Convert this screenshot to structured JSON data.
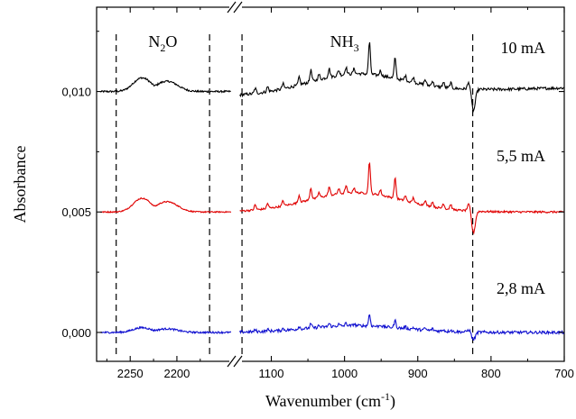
{
  "chart_data": {
    "type": "line",
    "xlabel": "Wavenumber (cm",
    "xlabel_superscript": "-1",
    "xlabel_suffix": ")",
    "ylabel": "Absorbance",
    "ylim": [
      -0.0012,
      0.0135
    ],
    "x_axis_broken": true,
    "x_segments": [
      {
        "range": [
          2285,
          2140
        ],
        "ticks": [
          2250,
          2200
        ],
        "tick_labels": [
          "2250",
          "2200"
        ]
      },
      {
        "range": [
          1145,
          700
        ],
        "ticks": [
          1100,
          1000,
          900,
          800,
          700
        ],
        "tick_labels": [
          "1100",
          "1000",
          "900",
          "800",
          "700"
        ]
      }
    ],
    "y_ticks": [
      0.0,
      0.005,
      0.01
    ],
    "y_tick_labels": [
      "0,000",
      "0,005",
      "0,010"
    ],
    "regions": [
      {
        "label": "N",
        "sub": "2",
        "suffix": "O",
        "x_at": 2215
      },
      {
        "label": "NH",
        "sub": "3",
        "suffix": "",
        "x_at": 1000
      }
    ],
    "dashed_lines_x": [
      2265,
      2165,
      1140,
      825
    ],
    "series": [
      {
        "name": "10 mA",
        "color": "#000000",
        "baseline": 0.01,
        "scale": 1.0,
        "noise": 0.00012
      },
      {
        "name": "5,5 mA",
        "color": "#e00000",
        "baseline": 0.005,
        "scale": 1.0,
        "noise": 8e-05
      },
      {
        "name": "2,8 mA",
        "color": "#1010d0",
        "baseline": 0.0,
        "scale": 0.35,
        "noise": 0.00012
      }
    ],
    "grid": false
  }
}
